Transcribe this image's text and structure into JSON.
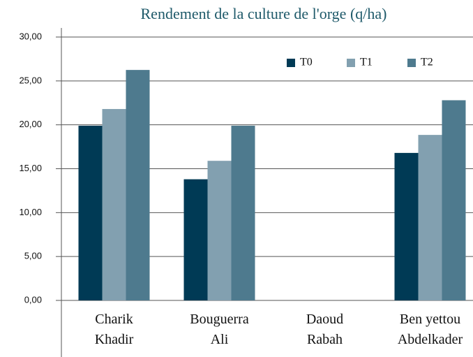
{
  "chart_data": {
    "type": "bar",
    "title": "Rendement de la culture de l'orge (q/ha)",
    "categories": [
      "Charik\nKhadir",
      "Bouguerra\nAli",
      "Daoud\nRabah",
      "Ben yettou\nAbdelkader"
    ],
    "series": [
      {
        "name": "T0",
        "color": "#003a55",
        "values": [
          19.9,
          13.8,
          null,
          16.8
        ]
      },
      {
        "name": "T1",
        "color": "#82a0b0",
        "values": [
          21.8,
          15.9,
          null,
          18.85
        ]
      },
      {
        "name": "T2",
        "color": "#4e7a8e",
        "values": [
          26.25,
          19.9,
          null,
          22.8
        ]
      }
    ],
    "ylim": [
      0,
      30
    ],
    "yticks": [
      {
        "value": 0,
        "label": "0,00"
      },
      {
        "value": 5,
        "label": "5,00"
      },
      {
        "value": 10,
        "label": "10,00"
      },
      {
        "value": 15,
        "label": "15,00"
      },
      {
        "value": 20,
        "label": "20,00"
      },
      {
        "value": 25,
        "label": "25,00"
      },
      {
        "value": 30,
        "label": "30,00"
      }
    ],
    "grid": true,
    "legend": "top-right"
  }
}
